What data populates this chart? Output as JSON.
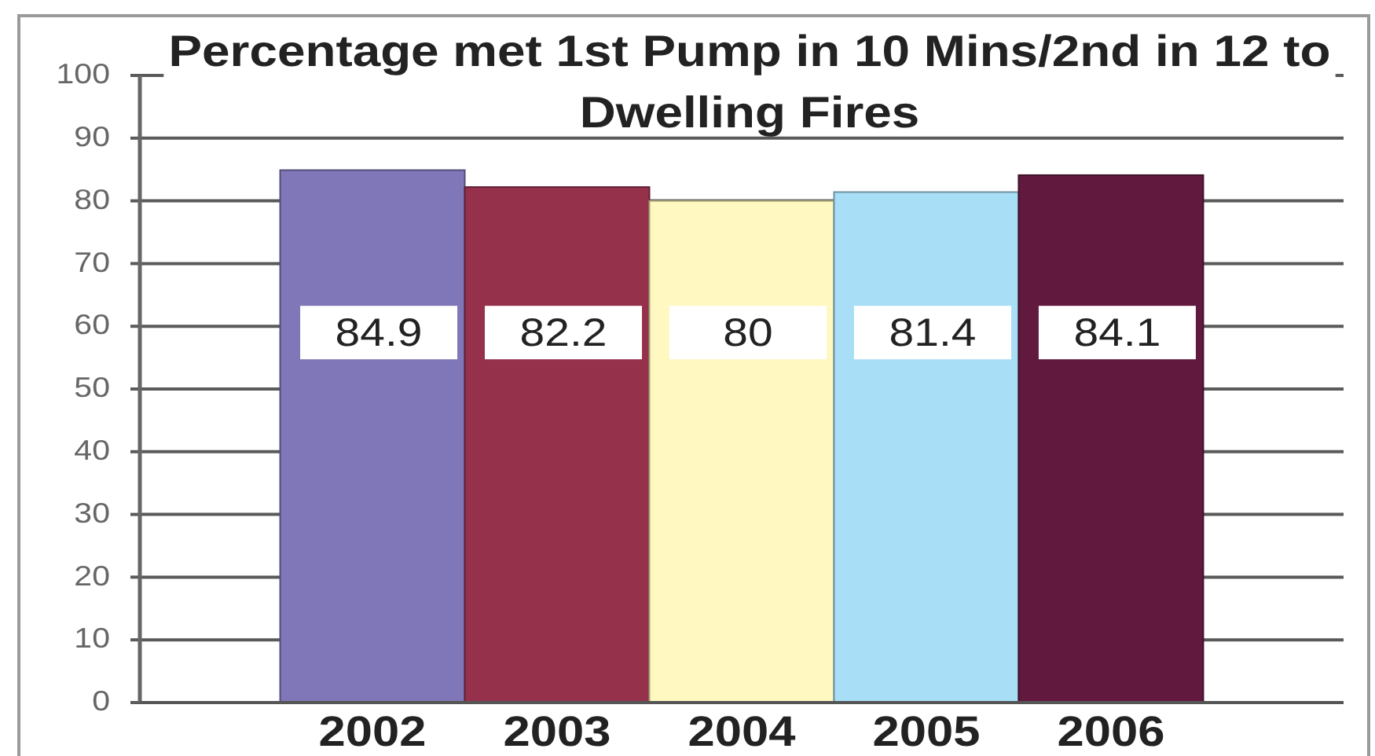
{
  "chart_data": {
    "type": "bar",
    "title": "Percentage met 1st Pump in 10 Mins/2nd in 12 to Dwelling Fires",
    "categories": [
      "2002",
      "2003",
      "2004",
      "2005",
      "2006"
    ],
    "values": [
      84.9,
      82.2,
      80,
      81.4,
      84.1
    ],
    "colors": [
      "#7f77b8",
      "#96314c",
      "#fff8c0",
      "#a8dff7",
      "#611a3e"
    ],
    "ylim": [
      0,
      100
    ],
    "yticks": [
      0,
      10,
      20,
      30,
      40,
      50,
      60,
      70,
      80,
      90,
      100
    ],
    "grid": "y",
    "data_labels": true
  }
}
